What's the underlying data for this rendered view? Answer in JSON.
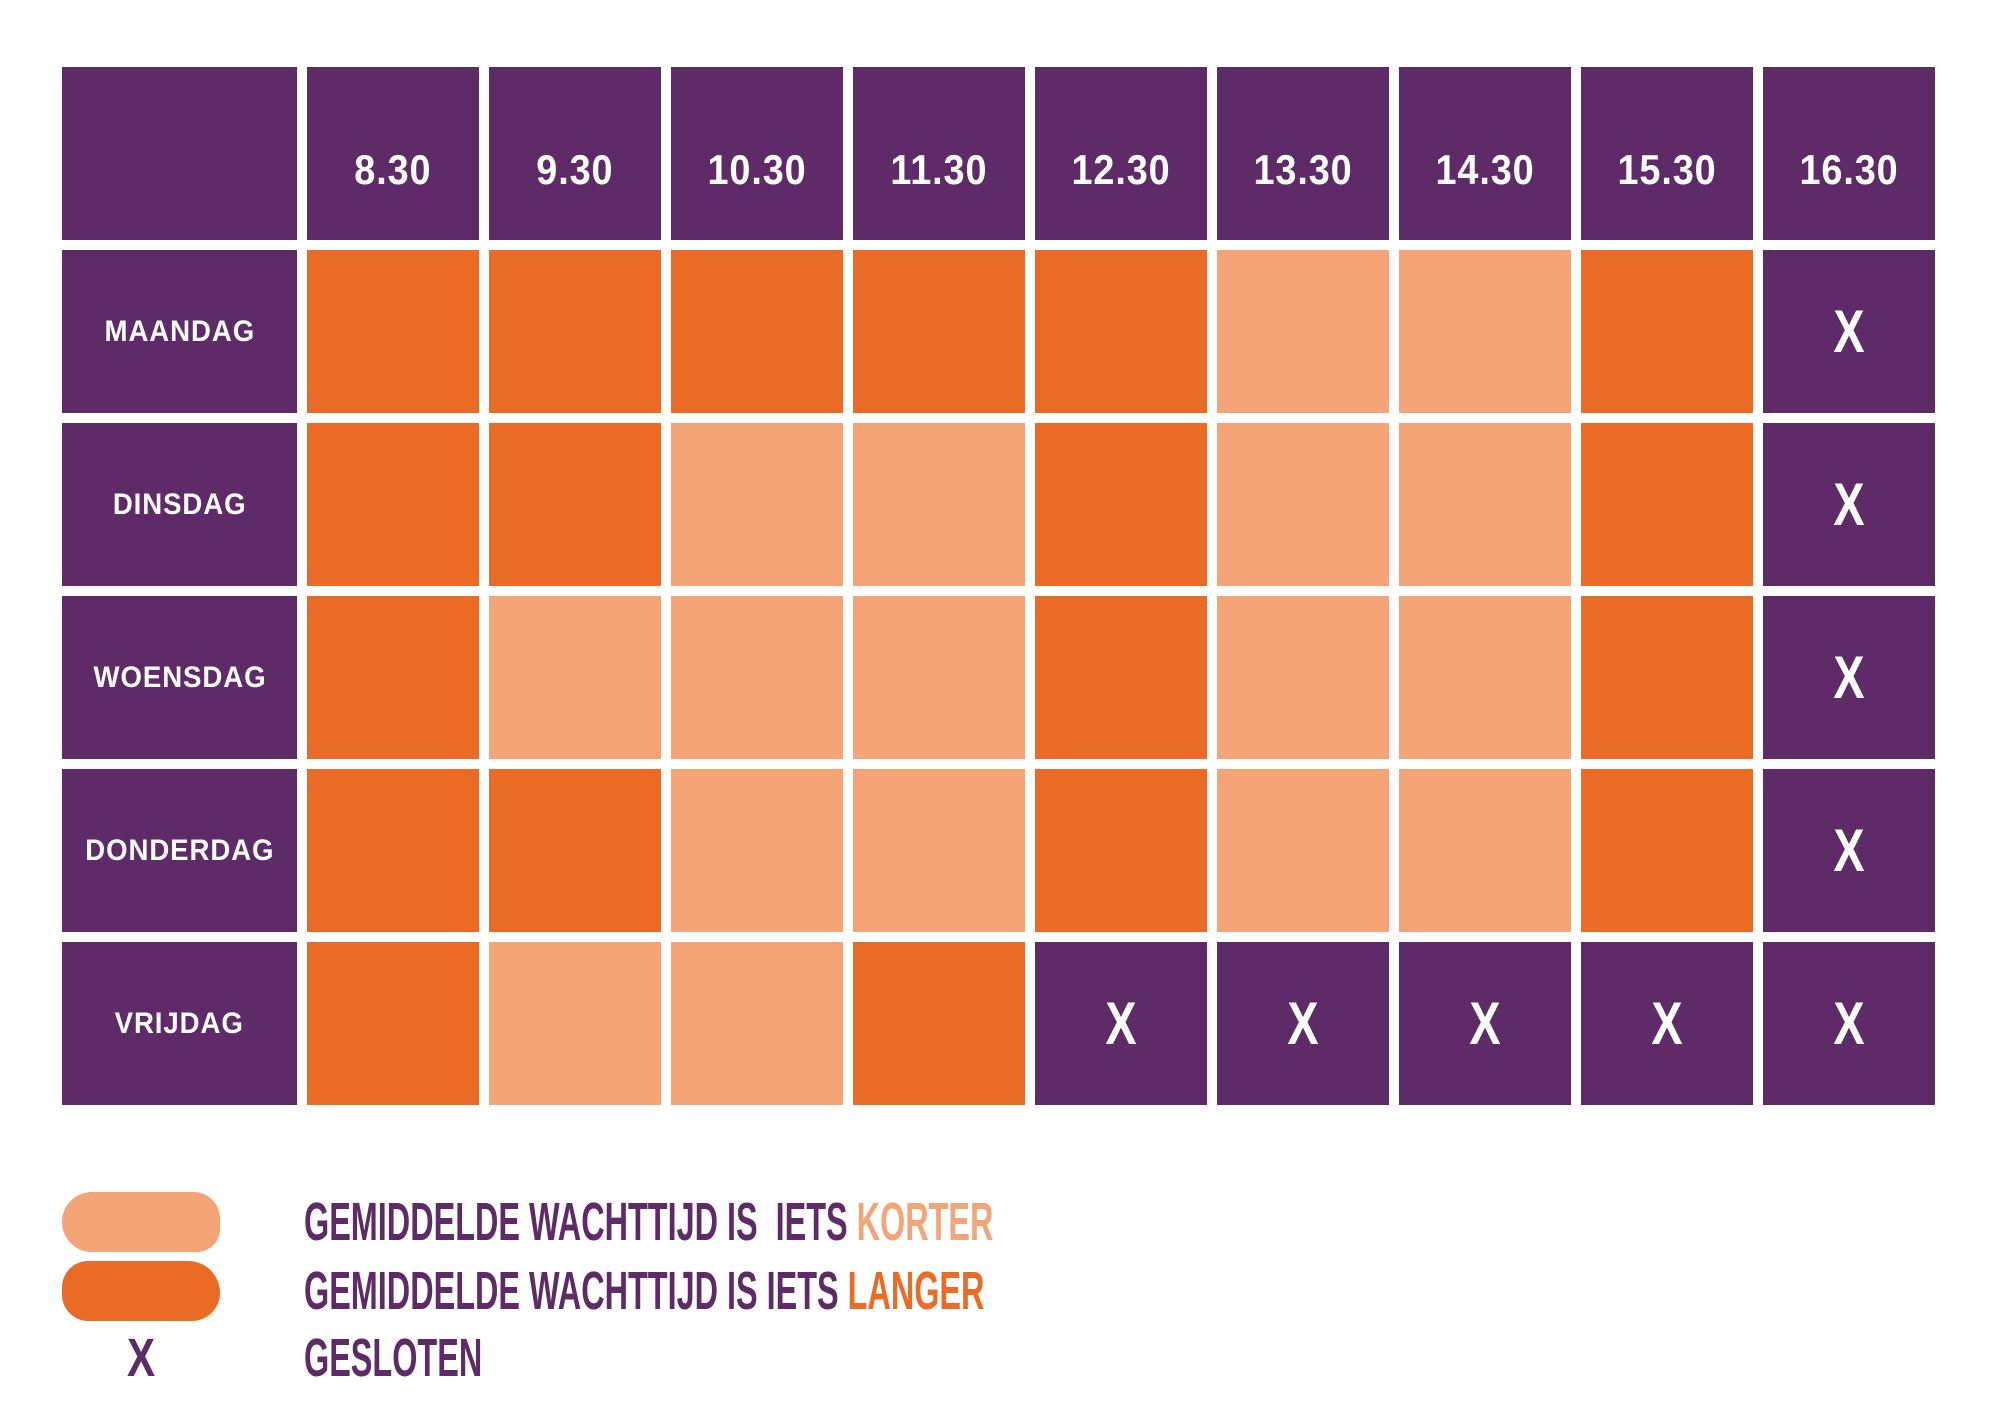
{
  "table": {
    "corner_label": "",
    "time_headers": [
      "8.30",
      "9.30",
      "10.30",
      "11.30",
      "12.30",
      "13.30",
      "14.30",
      "15.30",
      "16.30"
    ],
    "closed_mark": "X",
    "rows": [
      {
        "day": "MAANDAG",
        "cells": [
          "langer",
          "langer",
          "langer",
          "langer",
          "langer",
          "korter",
          "korter",
          "langer",
          "gesloten"
        ]
      },
      {
        "day": "DINSDAG",
        "cells": [
          "langer",
          "langer",
          "korter",
          "korter",
          "langer",
          "korter",
          "korter",
          "langer",
          "gesloten"
        ]
      },
      {
        "day": "WOENSDAG",
        "cells": [
          "langer",
          "korter",
          "korter",
          "korter",
          "langer",
          "korter",
          "korter",
          "langer",
          "gesloten"
        ]
      },
      {
        "day": "DONDERDAG",
        "cells": [
          "langer",
          "langer",
          "korter",
          "korter",
          "langer",
          "korter",
          "korter",
          "langer",
          "gesloten"
        ]
      },
      {
        "day": "VRIJDAG",
        "cells": [
          "langer",
          "korter",
          "korter",
          "langer",
          "gesloten",
          "gesloten",
          "gesloten",
          "gesloten",
          "gesloten"
        ]
      }
    ]
  },
  "legend": {
    "items": [
      {
        "key": "korter",
        "prefix": "GEMIDDELDE WACHTTIJD IS  IETS ",
        "highlight": "KORTER",
        "highlight_color": "#f4a476"
      },
      {
        "key": "langer",
        "prefix": "GEMIDDELDE WACHTTIJD IS IETS ",
        "highlight": "LANGER",
        "highlight_color": "#ea6b26"
      },
      {
        "key": "gesloten",
        "prefix": "GESLOTEN",
        "highlight": "",
        "highlight_color": "",
        "mark": "X"
      }
    ]
  },
  "colors": {
    "purple": "#5e2a68",
    "langer_orange": "#ea6b26",
    "korter_orange": "#f4a476",
    "background": "#ffffff",
    "cell_text": "#ffffff"
  },
  "chart_data": {
    "type": "heatmap",
    "title": "",
    "x": [
      "8.30",
      "9.30",
      "10.30",
      "11.30",
      "12.30",
      "13.30",
      "14.30",
      "15.30",
      "16.30"
    ],
    "y": [
      "MAANDAG",
      "DINSDAG",
      "WOENSDAG",
      "DONDERDAG",
      "VRIJDAG"
    ],
    "values": [
      [
        "langer",
        "langer",
        "langer",
        "langer",
        "langer",
        "korter",
        "korter",
        "langer",
        "gesloten"
      ],
      [
        "langer",
        "langer",
        "korter",
        "korter",
        "langer",
        "korter",
        "korter",
        "langer",
        "gesloten"
      ],
      [
        "langer",
        "korter",
        "korter",
        "korter",
        "langer",
        "korter",
        "korter",
        "langer",
        "gesloten"
      ],
      [
        "langer",
        "langer",
        "korter",
        "korter",
        "langer",
        "korter",
        "korter",
        "langer",
        "gesloten"
      ],
      [
        "langer",
        "korter",
        "korter",
        "langer",
        "gesloten",
        "gesloten",
        "gesloten",
        "gesloten",
        "gesloten"
      ]
    ],
    "value_legend": [
      {
        "value": "korter",
        "color": "#f4a476",
        "label": "GEMIDDELDE WACHTTIJD IS  IETS KORTER"
      },
      {
        "value": "langer",
        "color": "#ea6b26",
        "label": "GEMIDDELDE WACHTTIJD IS IETS LANGER"
      },
      {
        "value": "gesloten",
        "color": "#5e2a68",
        "label": "GESLOTEN",
        "mark": "X"
      }
    ],
    "legend_position": "bottom-left",
    "grid": false
  }
}
